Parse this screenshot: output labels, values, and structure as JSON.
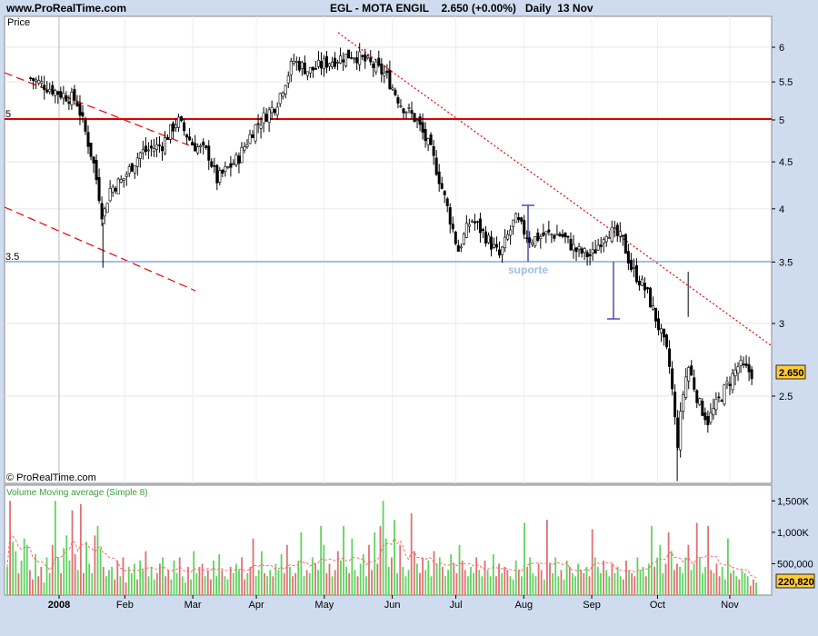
{
  "site": "www.ProRealTime.com",
  "header": {
    "ticker": "EGL - MOTA ENGIL",
    "price": "2.650",
    "change": "(+0.00%)",
    "period": "Daily",
    "date": "13 Nov"
  },
  "price_panel": {
    "label": "Price",
    "copyright": "© ProRealTime.com",
    "support_label": "suporte",
    "current_price_box": "2.650",
    "hline_labels": [
      "5",
      "3.5"
    ]
  },
  "volume_panel": {
    "title": "Volume  Moving average (Simple 8)",
    "current_volume_box": "220,820",
    "colors": {
      "up": "#5fd35f",
      "down": "#e07070",
      "ma": "#ff6060"
    }
  },
  "colors": {
    "background": "#cfdcf0",
    "panel": "#ffffff",
    "resistance_line": "#dd0000",
    "support_line": "#9fbfe8",
    "trend_lines": "#ee0000",
    "price_box": "#ffcc33"
  },
  "chart_data": [
    {
      "type": "candlestick",
      "title": "EGL - MOTA ENGIL",
      "ylabel": "Price",
      "y_scale": "log",
      "ylim": [
        1.95,
        6.5
      ],
      "y_ticks": [
        2.5,
        3,
        3.5,
        4,
        4.5,
        5,
        5.5,
        6
      ],
      "x_ticks": [
        "2008",
        "Feb",
        "Mar",
        "Apr",
        "May",
        "Jun",
        "Jul",
        "Aug",
        "Sep",
        "Oct",
        "Nov"
      ],
      "horizontal_lines": [
        {
          "value": 5,
          "label": "5",
          "color": "#dd0000"
        },
        {
          "value": 3.5,
          "label": "3.5",
          "color": "#9fbfe8"
        }
      ],
      "annotations": [
        "suporte",
        "2.650"
      ],
      "close_path": [
        [
          "2007-12-20",
          5.55
        ],
        [
          "2008-01-02",
          5.35
        ],
        [
          "2008-01-10",
          5.25
        ],
        [
          "2008-01-14",
          4.85
        ],
        [
          "2008-01-18",
          4.45
        ],
        [
          "2008-01-22",
          3.9
        ],
        [
          "2008-01-25",
          4.2
        ],
        [
          "2008-01-31",
          4.3
        ],
        [
          "2008-02-08",
          4.6
        ],
        [
          "2008-02-18",
          4.7
        ],
        [
          "2008-02-25",
          5.0
        ],
        [
          "2008-03-03",
          4.7
        ],
        [
          "2008-03-10",
          4.6
        ],
        [
          "2008-03-14",
          4.3
        ],
        [
          "2008-03-24",
          4.55
        ],
        [
          "2008-03-31",
          4.9
        ],
        [
          "2008-04-10",
          5.2
        ],
        [
          "2008-04-18",
          5.8
        ],
        [
          "2008-04-25",
          5.65
        ],
        [
          "2008-05-05",
          5.8
        ],
        [
          "2008-05-15",
          5.9
        ],
        [
          "2008-05-23",
          5.75
        ],
        [
          "2008-05-30",
          5.6
        ],
        [
          "2008-06-06",
          5.2
        ],
        [
          "2008-06-13",
          5.0
        ],
        [
          "2008-06-20",
          4.6
        ],
        [
          "2008-06-26",
          4.1
        ],
        [
          "2008-07-02",
          3.6
        ],
        [
          "2008-07-08",
          3.9
        ],
        [
          "2008-07-14",
          3.75
        ],
        [
          "2008-07-21",
          3.55
        ],
        [
          "2008-07-28",
          3.9
        ],
        [
          "2008-08-04",
          3.7
        ],
        [
          "2008-08-11",
          3.75
        ],
        [
          "2008-08-18",
          3.75
        ],
        [
          "2008-08-25",
          3.6
        ],
        [
          "2008-09-01",
          3.55
        ],
        [
          "2008-09-08",
          3.8
        ],
        [
          "2008-09-15",
          3.7
        ],
        [
          "2008-09-19",
          3.45
        ],
        [
          "2008-09-26",
          3.25
        ],
        [
          "2008-10-01",
          3.0
        ],
        [
          "2008-10-06",
          2.75
        ],
        [
          "2008-10-08",
          2.5
        ],
        [
          "2008-10-10",
          2.2
        ],
        [
          "2008-10-13",
          2.55
        ],
        [
          "2008-10-15",
          2.7
        ],
        [
          "2008-10-20",
          2.45
        ],
        [
          "2008-10-24",
          2.35
        ],
        [
          "2008-10-28",
          2.45
        ],
        [
          "2008-11-03",
          2.6
        ],
        [
          "2008-11-07",
          2.7
        ],
        [
          "2008-11-13",
          2.65
        ]
      ]
    },
    {
      "type": "bar",
      "title": "Volume  Moving average (Simple 8)",
      "y_ticks": [
        "1,500K",
        "1,000K",
        "500,000"
      ],
      "y_tick_values": [
        1500000,
        1000000,
        500000
      ],
      "ylim": [
        0,
        1750000
      ],
      "last_value": 220820,
      "series": [
        {
          "name": "Volume",
          "values": [
            450000,
            1500000,
            850000,
            700000,
            350000,
            550000,
            900000,
            800000,
            400000,
            250000,
            650000,
            300000,
            450000,
            200000,
            600000,
            350000,
            800000,
            1500000,
            600000,
            350000,
            750000,
            950000,
            550000,
            1350000,
            650000,
            400000,
            1450000,
            350000,
            850000,
            500000,
            350000,
            950000,
            1100000,
            750000,
            450000,
            300000,
            400000,
            450000,
            250000,
            550000,
            300000,
            600000,
            200000,
            450000,
            350000,
            500000,
            250000,
            550000,
            400000,
            700000,
            300000,
            450000,
            250000,
            350000,
            500000,
            600000,
            300000,
            400000,
            250000,
            550000,
            350000,
            600000,
            300000,
            200000,
            450000,
            250000,
            700000,
            350000,
            450000,
            500000,
            300000,
            400000,
            250000,
            550000,
            300000,
            650000,
            400000,
            300000,
            250000,
            450000,
            350000,
            500000,
            400000,
            600000,
            250000,
            350000,
            450000,
            900000,
            300000,
            400000,
            700000,
            350000,
            300000,
            400000,
            300000,
            500000,
            400000,
            650000,
            350000,
            800000,
            450000,
            300000,
            350000,
            550000,
            1000000,
            300000,
            400000,
            350000,
            600000,
            500000,
            400000,
            1100000,
            800000,
            350000,
            500000,
            300000,
            400000,
            700000,
            550000,
            1100000,
            450000,
            350000,
            900000,
            400000,
            300000,
            500000,
            650000,
            300000,
            800000,
            400000,
            1000000,
            500000,
            1100000,
            1500000,
            900000,
            450000,
            600000,
            1200000,
            350000,
            800000,
            450000,
            300000,
            400000,
            1300000,
            700000,
            500000,
            350000,
            600000,
            400000,
            550000,
            300000,
            700000,
            500000,
            600000,
            450000,
            300000,
            400000,
            650000,
            500000,
            350000,
            800000,
            550000,
            400000,
            300000,
            450000,
            350000,
            600000,
            400000,
            300000,
            550000,
            400000,
            300000,
            650000,
            300000,
            500000,
            350000,
            450000,
            400000,
            300000,
            250000,
            550000,
            400000,
            300000,
            1150000,
            450000,
            600000,
            350000,
            300000,
            500000,
            400000,
            250000,
            1200000,
            500000,
            350000,
            600000,
            300000,
            400000,
            250000,
            550000,
            450000,
            350000,
            300000,
            500000,
            400000,
            350000,
            450000,
            300000,
            1050000,
            600000,
            450000,
            350000,
            550000,
            400000,
            300000,
            500000,
            350000,
            450000,
            300000,
            250000,
            550000,
            400000,
            350000,
            300000,
            600000,
            400000,
            450000,
            300000,
            500000,
            1100000,
            450000,
            600000,
            800000,
            350000,
            500000,
            1000000,
            700000,
            400000,
            500000,
            450000,
            350000,
            600000,
            800000,
            400000,
            500000,
            1150000,
            600000,
            350000,
            450000,
            1100000,
            400000,
            350000,
            500000,
            300000,
            450000,
            250000,
            900000,
            350000,
            400000,
            300000,
            250000,
            400000,
            350000,
            300000,
            150000,
            250000,
            200000
          ]
        }
      ],
      "moving_average_label": "Moving average (Simple 8)"
    }
  ]
}
